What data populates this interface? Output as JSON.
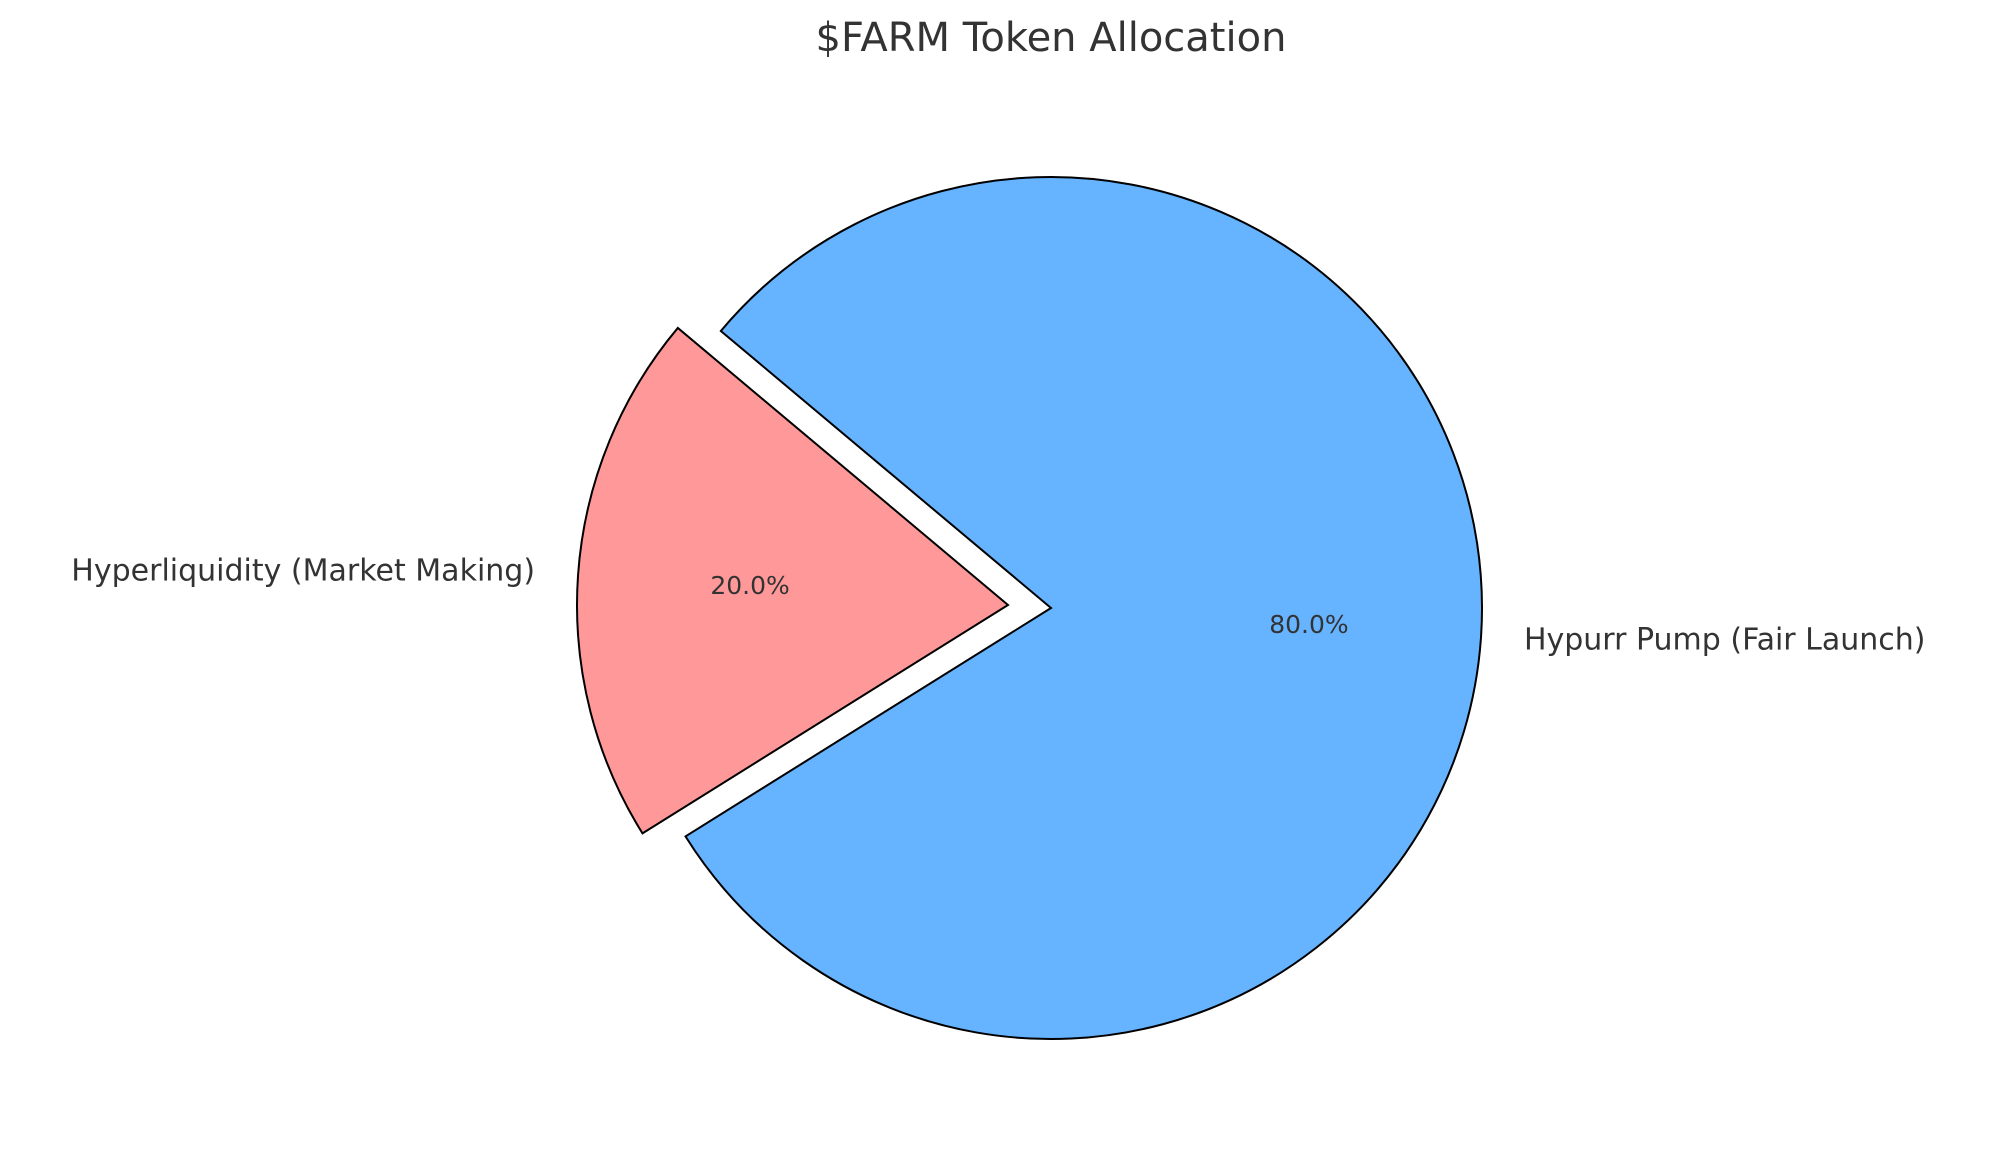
{
  "chart_data": {
    "type": "pie",
    "title": "$FARM Token Allocation",
    "categories": [
      "Hyperliquidity (Market Making)",
      "Hypurr Pump (Fair Launch)"
    ],
    "values": [
      20,
      80
    ],
    "value_labels": [
      "20.0%",
      "80.0%"
    ],
    "colors": [
      "#ff9999",
      "#66b3ff"
    ]
  }
}
